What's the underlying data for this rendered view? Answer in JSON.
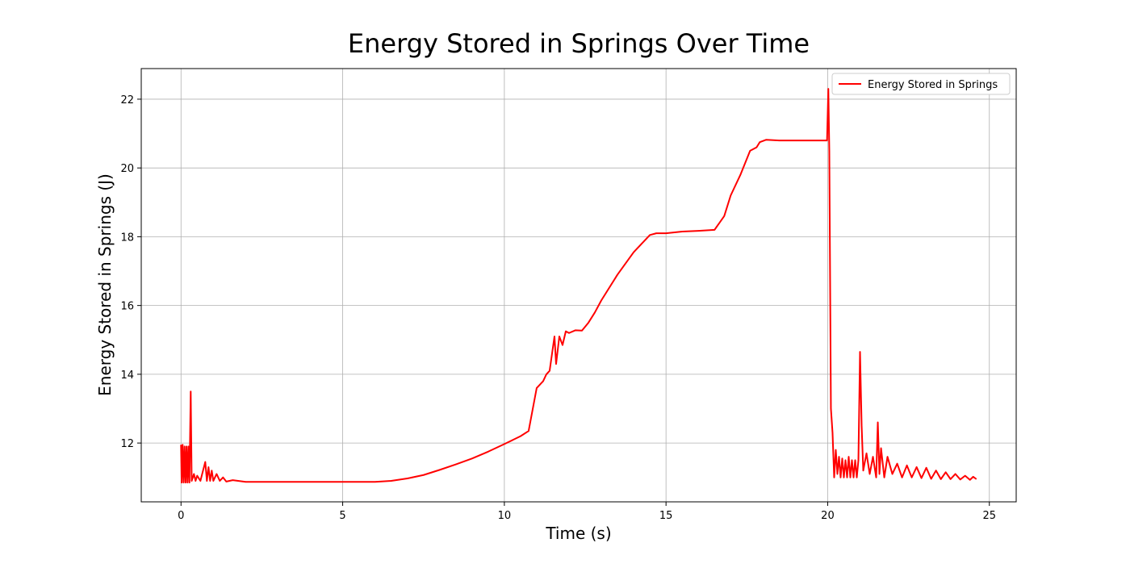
{
  "chart_data": {
    "type": "line",
    "title": "Energy Stored in Springs Over Time",
    "x_label": "Time (s)",
    "y_label": "Energy Stored in Springs (J)",
    "xlim": [
      -1.23,
      25.83
    ],
    "ylim": [
      10.29,
      22.89
    ],
    "xticks": [
      0,
      5,
      10,
      15,
      20,
      25
    ],
    "yticks": [
      12,
      14,
      16,
      18,
      20,
      22
    ],
    "grid": true,
    "legend": "upper right",
    "series": [
      {
        "name": "Energy Stored in Springs",
        "color": "#ff0000",
        "x": [
          0,
          0.02,
          0.05,
          0.08,
          0.11,
          0.14,
          0.17,
          0.2,
          0.23,
          0.26,
          0.3,
          0.33,
          0.4,
          0.45,
          0.5,
          0.6,
          0.75,
          0.8,
          0.85,
          0.9,
          0.95,
          1.0,
          1.1,
          1.2,
          1.3,
          1.4,
          1.6,
          2,
          3,
          4,
          5,
          6,
          6.5,
          7,
          7.5,
          8,
          8.5,
          9,
          9.5,
          10,
          10.5,
          10.75,
          11,
          11.2,
          11.3,
          11.4,
          11.55,
          11.6,
          11.7,
          11.8,
          11.9,
          12,
          12.2,
          12.4,
          12.6,
          12.8,
          13,
          13.5,
          14,
          14.5,
          14.7,
          15,
          15.5,
          16,
          16.5,
          16.8,
          17,
          17.3,
          17.6,
          17.8,
          17.9,
          18.1,
          18.5,
          19,
          19.5,
          19.98,
          20.02,
          20.05,
          20.1,
          20.15,
          20.2,
          20.25,
          20.3,
          20.35,
          20.4,
          20.45,
          20.5,
          20.55,
          20.6,
          20.65,
          20.7,
          20.75,
          20.8,
          20.85,
          20.9,
          20.95,
          21.0,
          21.05,
          21.1,
          21.2,
          21.3,
          21.4,
          21.5,
          21.55,
          21.6,
          21.65,
          21.75,
          21.85,
          22.0,
          22.15,
          22.3,
          22.45,
          22.6,
          22.75,
          22.9,
          23.05,
          23.2,
          23.35,
          23.5,
          23.65,
          23.8,
          23.95,
          24.1,
          24.25,
          24.4,
          24.5,
          24.6
        ],
        "values": [
          11.95,
          10.85,
          11.95,
          10.85,
          11.9,
          10.85,
          11.9,
          10.85,
          11.9,
          10.85,
          13.5,
          10.9,
          11.1,
          10.9,
          11.05,
          10.9,
          11.45,
          10.9,
          11.3,
          10.9,
          11.2,
          10.9,
          11.1,
          10.9,
          11.0,
          10.88,
          10.92,
          10.87,
          10.87,
          10.87,
          10.87,
          10.87,
          10.9,
          10.97,
          11.07,
          11.22,
          11.38,
          11.55,
          11.75,
          11.97,
          12.2,
          12.35,
          13.6,
          13.8,
          14.0,
          14.1,
          15.1,
          14.3,
          15.1,
          14.85,
          15.25,
          15.2,
          15.28,
          15.27,
          15.5,
          15.8,
          16.15,
          16.9,
          17.55,
          18.05,
          18.1,
          18.1,
          18.15,
          18.17,
          18.2,
          18.6,
          19.2,
          19.8,
          20.5,
          20.6,
          20.75,
          20.82,
          20.8,
          20.8,
          20.8,
          20.8,
          22.3,
          20.5,
          13.0,
          12.3,
          11.0,
          11.8,
          11.1,
          11.6,
          11.0,
          11.55,
          11.0,
          11.5,
          11.0,
          11.6,
          11.0,
          11.5,
          11.0,
          11.5,
          11.0,
          11.5,
          14.65,
          12.5,
          11.2,
          11.7,
          11.1,
          11.6,
          11.0,
          12.6,
          11.1,
          11.85,
          11.0,
          11.6,
          11.1,
          11.4,
          11.0,
          11.35,
          11.0,
          11.3,
          10.98,
          11.28,
          10.96,
          11.2,
          10.95,
          11.15,
          10.95,
          11.1,
          10.94,
          11.05,
          10.93,
          11.02,
          10.95
        ]
      }
    ]
  }
}
